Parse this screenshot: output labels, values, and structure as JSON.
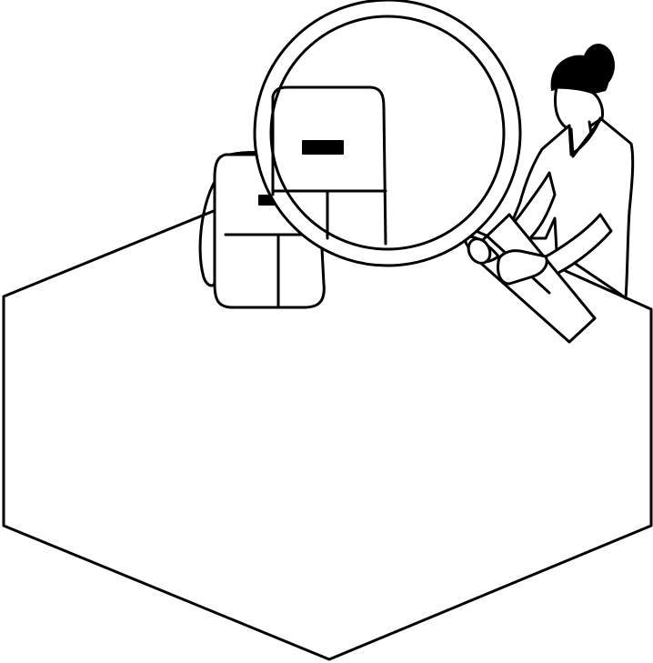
{
  "palette": {
    "ink": "#000000",
    "paper": "#ffffff"
  },
  "illustration": {
    "icons": [
      "hexagon-outline",
      "backpack-icon",
      "magnifying-glass-icon",
      "woman-figure-icon"
    ]
  }
}
